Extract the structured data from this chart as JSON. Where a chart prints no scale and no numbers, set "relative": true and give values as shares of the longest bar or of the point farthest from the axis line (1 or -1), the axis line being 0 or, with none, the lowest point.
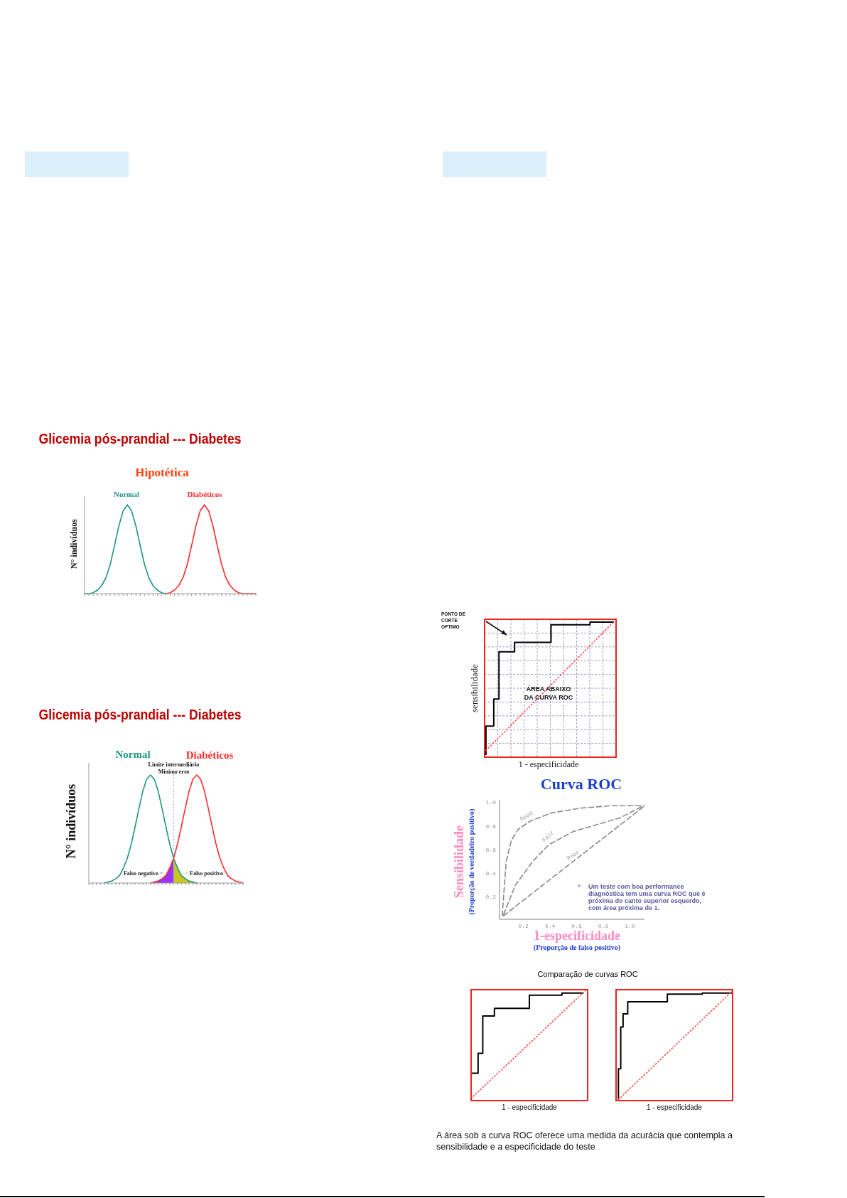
{
  "chart_data": [
    {
      "type": "line",
      "title": "Glicemia pós-prandial  --- Diabetes",
      "subtitle": "Hipotética",
      "ylabel": "N° indivíduos",
      "relative": true,
      "categories": [
        null,
        null,
        null,
        null,
        null,
        null,
        null,
        null,
        null,
        null,
        null,
        null,
        null,
        null,
        null,
        null,
        null,
        null,
        null,
        null,
        null,
        null,
        null,
        null,
        null,
        null,
        null,
        null,
        null,
        null,
        null,
        null,
        null,
        null,
        null,
        null,
        null,
        null,
        null,
        null,
        null
      ],
      "series": [
        {
          "name": "Normal",
          "color": "#1f9488",
          "values": [
            0,
            0,
            0.01,
            0.04,
            0.09,
            0.18,
            0.33,
            0.54,
            0.76,
            0.93,
            1,
            0.93,
            0.76,
            0.54,
            0.33,
            0.18,
            0.09,
            0.04,
            0.01,
            0,
            null,
            null,
            null,
            null,
            null,
            null,
            null,
            null,
            null,
            null,
            null,
            null,
            null,
            null,
            null,
            null,
            null,
            null,
            null,
            null,
            null
          ]
        },
        {
          "name": "Diabéticos",
          "color": "#ff2a2a",
          "values": [
            null,
            null,
            null,
            null,
            null,
            null,
            null,
            null,
            null,
            null,
            null,
            null,
            null,
            null,
            null,
            null,
            null,
            null,
            null,
            0,
            0.01,
            0.04,
            0.09,
            0.18,
            0.33,
            0.54,
            0.76,
            0.93,
            1,
            0.93,
            0.76,
            0.54,
            0.33,
            0.18,
            0.09,
            0.04,
            0.01,
            0,
            0,
            0,
            0
          ]
        }
      ]
    },
    {
      "type": "line",
      "title": "Glicemia pós-prandial  --- Diabetes",
      "ylabel": "N° indivíduos",
      "relative": true,
      "categories": [
        null,
        null,
        null,
        null,
        null,
        null,
        null,
        null,
        null,
        null,
        null,
        null,
        null,
        null,
        null,
        null,
        null,
        null,
        null,
        null,
        null,
        null,
        null,
        null,
        null,
        null,
        null,
        null,
        null,
        null,
        null,
        null,
        null,
        null,
        null,
        null,
        null,
        null,
        null,
        null,
        null
      ],
      "series": [
        {
          "name": "Normal",
          "color": "#1f9488",
          "values": [
            null,
            null,
            null,
            null,
            0,
            0.01,
            0.02,
            0.04,
            0.07,
            0.14,
            0.23,
            0.36,
            0.52,
            0.69,
            0.85,
            0.96,
            1,
            0.96,
            0.85,
            0.69,
            0.52,
            0.36,
            0.23,
            0.14,
            0.07,
            0.04,
            0.02,
            0.01,
            0,
            null,
            null,
            null,
            null,
            null,
            null,
            null,
            null,
            null,
            null,
            null,
            null
          ]
        },
        {
          "name": "Diabéticos",
          "color": "#ff2a2a",
          "values": [
            null,
            null,
            null,
            null,
            null,
            null,
            null,
            null,
            null,
            null,
            null,
            null,
            null,
            null,
            null,
            null,
            0,
            0.01,
            0.02,
            0.04,
            0.07,
            0.14,
            0.23,
            0.36,
            0.52,
            0.69,
            0.85,
            0.96,
            1,
            0.96,
            0.85,
            0.69,
            0.52,
            0.36,
            0.23,
            0.14,
            0.07,
            0.04,
            0.02,
            0.01,
            0
          ]
        },
        {
          "name": "Falso negativo",
          "type": "area",
          "color": "#9933ff",
          "values": [
            null,
            null,
            null,
            null,
            null,
            null,
            null,
            null,
            null,
            null,
            null,
            null,
            null,
            null,
            null,
            null,
            0,
            0.01,
            0.02,
            0.04,
            0.07,
            0.14,
            0.23,
            null,
            null,
            null,
            null,
            null,
            null,
            null,
            null,
            null,
            null,
            null,
            null,
            null,
            null,
            null,
            null,
            null,
            null
          ]
        },
        {
          "name": "Falso positivo",
          "type": "area",
          "color": "#c8c820",
          "values": [
            null,
            null,
            null,
            null,
            null,
            null,
            null,
            null,
            null,
            null,
            null,
            null,
            null,
            null,
            null,
            null,
            null,
            null,
            null,
            null,
            null,
            null,
            0.23,
            0.14,
            0.07,
            0.04,
            0.02,
            0.01,
            0,
            null,
            null,
            null,
            null,
            null,
            null,
            null,
            null,
            null,
            null,
            null,
            null
          ]
        }
      ],
      "annotations": [
        "Limite intermediário\nMínimo erro"
      ]
    },
    {
      "type": "step",
      "xlabel": "1 - especificidade",
      "ylabel": "sensibilidade",
      "relative": true,
      "grid": true,
      "categories": [
        null,
        null,
        null,
        null,
        null,
        null,
        null,
        null,
        null,
        null,
        null,
        null,
        null,
        null,
        null,
        null,
        null,
        null,
        null,
        null,
        null,
        null,
        null,
        null,
        null,
        null,
        null,
        null,
        null,
        null,
        null,
        null,
        null,
        null,
        null,
        null,
        null,
        null,
        null,
        null,
        null,
        null,
        null,
        null,
        null,
        null,
        null,
        null,
        null,
        null
      ],
      "series": [
        {
          "color": "#000000",
          "values": [
            0.02,
            0.23,
            0.23,
            0.23,
            0.43,
            0.43,
            0.78,
            0.78,
            0.78,
            0.78,
            0.78,
            0.78,
            0.85,
            0.85,
            0.85,
            0.85,
            0.85,
            0.85,
            0.85,
            0.85,
            0.85,
            0.85,
            0.85,
            0.85,
            0.85,
            0.85,
            0.98,
            0.98,
            0.98,
            0.98,
            0.98,
            0.98,
            0.98,
            0.98,
            0.98,
            0.98,
            0.98,
            0.98,
            0.98,
            0.98,
            0.98,
            1,
            1,
            1,
            1,
            1,
            1,
            1,
            1,
            1
          ]
        },
        {
          "type": "line",
          "color": "#ff5050",
          "line_style": "dotted",
          "values": [
            0.05,
            null,
            null,
            null,
            null,
            null,
            null,
            null,
            null,
            null,
            null,
            null,
            null,
            null,
            null,
            null,
            null,
            null,
            null,
            null,
            null,
            null,
            null,
            null,
            null,
            null,
            null,
            null,
            null,
            null,
            null,
            null,
            null,
            null,
            null,
            null,
            null,
            null,
            null,
            null,
            null,
            null,
            null,
            null,
            null,
            null,
            null,
            null,
            null,
            1
          ]
        }
      ],
      "annotations": [
        "ÁREA ABAIXO\nDA CURVA ROC",
        "PONTO DE\nCORTE\nOPTIMO"
      ]
    },
    {
      "type": "line",
      "title": "Curva ROC",
      "xlabel": "1-especificidade\n(Proporção de falso positivo)",
      "ylabel": "Sensibilidade\n(Proporção de verdadeiro positivo)",
      "xlim": [
        0.02,
        1.11
      ],
      "ylim": [
        0.01,
        1.02
      ],
      "line_style": "dashed",
      "xticks": [
        0.2,
        0.4,
        0.6,
        0.8,
        {
          "value": 1,
          "label": "1.0"
        }
      ],
      "yticks": [
        0.2,
        0.4,
        0.6,
        0.8,
        {
          "value": 1,
          "label": "1.0"
        }
      ],
      "series": [
        {
          "name": "Good",
          "color": "#888888",
          "x": [
            0.04,
            0.07,
            0.11,
            0.16,
            0.25,
            0.41,
            0.63,
            0.86,
            1.11
          ],
          "values": [
            0.04,
            0.5,
            0.68,
            0.77,
            0.84,
            0.91,
            0.95,
            0.97,
            0.97
          ]
        },
        {
          "name": "Fair",
          "color": "#888888",
          "x": [
            0.05,
            0.14,
            0.27,
            0.39,
            0.57,
            0.75,
            0.93,
            1.1
          ],
          "values": [
            0.05,
            0.3,
            0.5,
            0.64,
            0.75,
            0.81,
            0.87,
            0.97
          ]
        },
        {
          "name": "Poor",
          "color": "#888888",
          "x": [
            0.05,
            1.1
          ],
          "values": [
            0.04,
            0.96
          ]
        }
      ],
      "annotations": [
        "Um teste com boa performance diagnóstica tem uma curva ROC que é próxima do canto superior esquerdo, com área próxima de 1."
      ]
    },
    {
      "type": "step",
      "title": "Comparação de curvas ROC",
      "xlabel": "1 - especificidade",
      "relative": true,
      "categories": [
        null,
        null,
        null,
        null,
        null,
        null,
        null,
        null,
        null,
        null,
        null,
        null,
        null,
        null,
        null,
        null,
        null,
        null,
        null,
        null,
        null,
        null,
        null,
        null,
        null,
        null,
        null,
        null,
        null,
        null,
        null,
        null,
        null,
        null,
        null,
        null,
        null,
        null,
        null,
        null,
        null,
        null,
        null,
        null,
        null,
        null,
        null,
        null,
        null,
        null
      ],
      "series": [
        {
          "color": "#000000",
          "values": [
            0,
            0.25,
            0.25,
            0.25,
            0.43,
            0.43,
            0.77,
            0.77,
            0.77,
            0.77,
            0.77,
            0.84,
            0.84,
            0.84,
            0.84,
            0.84,
            0.84,
            0.84,
            0.84,
            0.84,
            0.84,
            0.84,
            0.84,
            0.84,
            0.84,
            0.84,
            0.96,
            0.96,
            0.96,
            0.96,
            0.96,
            0.96,
            0.96,
            0.96,
            0.96,
            0.96,
            0.96,
            0.96,
            0.96,
            0.96,
            0.98,
            0.98,
            0.98,
            0.98,
            0.98,
            0.98,
            0.98,
            0.98,
            0.98,
            null
          ]
        },
        {
          "type": "line",
          "color": "#ff5050",
          "line_style": "dotted",
          "values": [
            0.02,
            null,
            null,
            null,
            null,
            null,
            null,
            null,
            null,
            null,
            null,
            null,
            null,
            null,
            null,
            null,
            null,
            null,
            null,
            null,
            null,
            null,
            null,
            null,
            null,
            null,
            null,
            null,
            null,
            null,
            null,
            null,
            null,
            null,
            null,
            null,
            null,
            null,
            null,
            null,
            null,
            null,
            null,
            null,
            null,
            null,
            null,
            null,
            null,
            1
          ]
        }
      ]
    },
    {
      "type": "step",
      "xlabel": "1 - especificidade",
      "relative": true,
      "categories": [
        null,
        null,
        null,
        null,
        null,
        null,
        null,
        null,
        null,
        null,
        null,
        null,
        null,
        null,
        null,
        null,
        null,
        null,
        null,
        null,
        null,
        null,
        null,
        null,
        null,
        null,
        null,
        null,
        null,
        null,
        null,
        null,
        null,
        null,
        null,
        null,
        null,
        null,
        null,
        null,
        null,
        null,
        null,
        null,
        null,
        null,
        null,
        null,
        null,
        null
      ],
      "series": [
        {
          "color": "#000000",
          "values": [
            0.01,
            0.29,
            0.67,
            0.79,
            0.79,
            0.9,
            0.9,
            0.9,
            0.9,
            0.9,
            0.9,
            0.9,
            0.9,
            0.9,
            0.9,
            0.9,
            0.9,
            0.9,
            0.9,
            0.9,
            0.9,
            0.9,
            0.97,
            0.97,
            0.97,
            0.97,
            0.97,
            0.97,
            0.97,
            0.97,
            0.97,
            0.97,
            0.97,
            0.97,
            0.97,
            0.97,
            0.97,
            0.98,
            0.98,
            0.98,
            0.98,
            0.98,
            0.98,
            0.98,
            0.98,
            0.98,
            0.98,
            0.98,
            0.98,
            0.98
          ]
        },
        {
          "type": "line",
          "color": "#ff5050",
          "line_style": "dotted",
          "values": [
            0.01,
            null,
            null,
            null,
            null,
            null,
            null,
            null,
            null,
            null,
            null,
            null,
            null,
            null,
            null,
            null,
            null,
            null,
            null,
            null,
            null,
            null,
            null,
            null,
            null,
            null,
            null,
            null,
            null,
            null,
            null,
            null,
            null,
            null,
            null,
            null,
            null,
            null,
            null,
            null,
            null,
            null,
            null,
            null,
            null,
            null,
            null,
            null,
            null,
            1
          ]
        }
      ],
      "annotations": [
        "A área sob a curva ROC oferece uma medida da acurácia que contempla a sensibilidade e a especificidade do teste"
      ]
    }
  ]
}
